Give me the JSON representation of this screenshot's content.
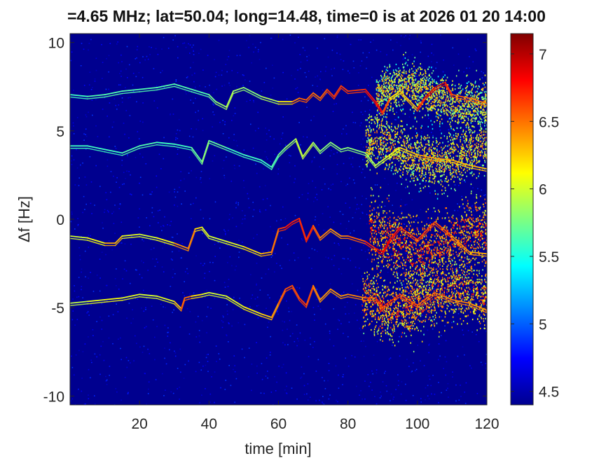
{
  "chart_data": {
    "type": "heatmap",
    "title": "=4.65 MHz;  lat=50.04; long=14.48, time=0 is at 2026 01 20 14:00",
    "xlabel": "time [min]",
    "ylabel": "Δf [Hz]",
    "xlim": [
      0,
      120
    ],
    "ylim": [
      -10.5,
      10.5
    ],
    "xticks": [
      20,
      40,
      60,
      80,
      100,
      120
    ],
    "yticks": [
      -10,
      -5,
      0,
      5,
      10
    ],
    "xtick_labels": [
      "20",
      "40",
      "60",
      "80",
      "100",
      "120"
    ],
    "ytick_labels": [
      "-10",
      "-5",
      "0",
      "5",
      "10"
    ],
    "colorbar": {
      "colormap": "jet",
      "clim": [
        4.4,
        7.15
      ],
      "ticks": [
        4.5,
        5,
        5.5,
        6,
        6.5,
        7
      ],
      "tick_labels": [
        "4.5",
        "5",
        "5.5",
        "6",
        "6.5",
        "7"
      ]
    },
    "background_level": 4.45,
    "series": [
      {
        "time": [
          0,
          5,
          10,
          15,
          20,
          25,
          30,
          35,
          40,
          42,
          45,
          47,
          50,
          55,
          60,
          64,
          66,
          68,
          70,
          72,
          74,
          76,
          78,
          80,
          85,
          88,
          90,
          92,
          95,
          100,
          102,
          105,
          108,
          110,
          115,
          120
        ],
        "df": [
          7.0,
          6.9,
          7.0,
          7.2,
          7.3,
          7.4,
          7.6,
          7.3,
          7.0,
          6.6,
          6.3,
          7.2,
          7.4,
          6.9,
          6.6,
          6.6,
          6.8,
          6.7,
          7.1,
          6.8,
          7.3,
          6.9,
          7.5,
          7.2,
          7.3,
          6.6,
          6.0,
          6.8,
          7.2,
          6.2,
          6.8,
          7.4,
          7.7,
          7.0,
          6.8,
          6.5
        ],
        "strength": [
          5.6,
          5.6,
          5.7,
          5.6,
          5.7,
          5.6,
          5.7,
          5.6,
          5.7,
          5.8,
          5.9,
          5.9,
          5.8,
          5.8,
          6.0,
          6.3,
          6.6,
          6.5,
          6.6,
          6.4,
          6.7,
          6.6,
          6.7,
          6.6,
          6.7,
          6.8,
          6.8,
          6.4,
          6.0,
          6.6,
          6.8,
          7.0,
          6.8,
          6.6,
          6.5,
          6.5
        ]
      },
      {
        "time": [
          0,
          5,
          10,
          15,
          20,
          25,
          30,
          35,
          38,
          40,
          45,
          50,
          55,
          58,
          60,
          62,
          65,
          67,
          70,
          72,
          75,
          78,
          80,
          85,
          88,
          90,
          95,
          100,
          105,
          110,
          115,
          120
        ],
        "df": [
          4.1,
          4.1,
          3.9,
          3.7,
          4.1,
          4.3,
          4.2,
          4.0,
          3.2,
          4.4,
          4.0,
          3.6,
          3.3,
          2.9,
          3.6,
          4.0,
          4.5,
          3.5,
          4.3,
          3.8,
          4.3,
          3.9,
          4.0,
          3.7,
          3.0,
          3.3,
          4.0,
          3.6,
          3.4,
          3.3,
          3.0,
          2.8
        ],
        "strength": [
          5.6,
          5.6,
          5.6,
          5.6,
          5.7,
          5.6,
          5.6,
          5.6,
          5.8,
          5.8,
          5.6,
          5.6,
          5.6,
          5.6,
          5.7,
          5.8,
          5.9,
          6.0,
          5.9,
          5.8,
          5.8,
          5.8,
          5.8,
          5.8,
          6.0,
          5.9,
          6.2,
          6.3,
          6.4,
          6.3,
          6.3,
          6.3
        ]
      },
      {
        "time": [
          0,
          5,
          10,
          13,
          15,
          20,
          25,
          30,
          34,
          36,
          38,
          40,
          45,
          50,
          55,
          58,
          60,
          62,
          64,
          66,
          68,
          70,
          72,
          75,
          78,
          80,
          85,
          88,
          90,
          92,
          95,
          100,
          105,
          110,
          115,
          120
        ],
        "df": [
          -1.0,
          -1.1,
          -1.4,
          -1.4,
          -1.0,
          -0.9,
          -1.1,
          -1.4,
          -1.7,
          -0.6,
          -0.5,
          -1.0,
          -1.3,
          -1.6,
          -2.0,
          -1.9,
          -0.6,
          -0.5,
          -0.2,
          0.0,
          -1.2,
          -0.4,
          -1.1,
          -0.6,
          -1.0,
          -1.0,
          -1.3,
          -1.7,
          -1.9,
          -1.2,
          -0.5,
          -1.2,
          -0.2,
          -1.0,
          -1.9,
          -2.0
        ],
        "strength": [
          6.0,
          6.0,
          6.2,
          6.5,
          6.1,
          6.0,
          6.0,
          6.2,
          6.6,
          6.3,
          6.1,
          6.0,
          6.0,
          6.1,
          6.3,
          6.4,
          6.6,
          6.7,
          6.8,
          6.6,
          6.8,
          6.6,
          6.5,
          6.4,
          6.4,
          6.5,
          6.6,
          6.8,
          6.9,
          6.8,
          6.7,
          6.6,
          6.7,
          6.5,
          6.4,
          6.3
        ]
      },
      {
        "time": [
          0,
          5,
          10,
          15,
          20,
          25,
          30,
          32,
          33,
          35,
          38,
          40,
          45,
          50,
          55,
          58,
          60,
          62,
          64,
          66,
          68,
          70,
          72,
          75,
          78,
          80,
          85,
          88,
          90,
          95,
          100,
          105,
          110,
          115,
          120
        ],
        "df": [
          -4.8,
          -4.7,
          -4.6,
          -4.5,
          -4.3,
          -4.4,
          -4.7,
          -5.1,
          -4.5,
          -4.4,
          -4.3,
          -4.2,
          -4.4,
          -5.0,
          -5.4,
          -5.6,
          -4.8,
          -4.0,
          -3.8,
          -4.5,
          -4.9,
          -3.8,
          -4.6,
          -4.0,
          -4.4,
          -4.3,
          -4.5,
          -4.5,
          -5.0,
          -4.3,
          -4.9,
          -4.2,
          -4.6,
          -4.8,
          -5.2
        ],
        "strength": [
          5.9,
          6.0,
          6.1,
          6.1,
          6.0,
          6.0,
          6.1,
          6.4,
          6.7,
          6.3,
          6.1,
          6.0,
          6.0,
          6.1,
          6.2,
          6.3,
          6.5,
          6.6,
          6.6,
          6.6,
          6.7,
          6.5,
          6.4,
          6.4,
          6.4,
          6.4,
          6.5,
          6.6,
          6.8,
          6.6,
          6.6,
          6.5,
          6.5,
          6.4,
          6.4
        ]
      }
    ],
    "diffuse_regions": [
      {
        "time_range": [
          88,
          120
        ],
        "df_center": 7.0,
        "df_spread": 1.2,
        "strength": 5.6
      },
      {
        "time_range": [
          85,
          120
        ],
        "df_center": 3.8,
        "df_spread": 1.4,
        "strength": 5.7
      },
      {
        "time_range": [
          86,
          120
        ],
        "df_center": -1.2,
        "df_spread": 1.8,
        "strength": 6.0
      },
      {
        "time_range": [
          84,
          120
        ],
        "df_center": -4.5,
        "df_spread": 1.5,
        "strength": 5.9
      }
    ]
  }
}
